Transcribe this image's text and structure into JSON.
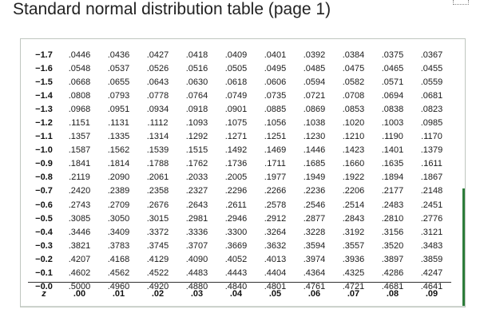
{
  "title": "Standard normal distribution table (page 1)",
  "table": {
    "header_z_label": "z",
    "column_headers": [
      ".00",
      ".01",
      ".02",
      ".03",
      ".04",
      ".05",
      ".06",
      ".07",
      ".08",
      ".09"
    ],
    "rows": [
      {
        "z": "−1.7",
        "values": [
          ".0446",
          ".0436",
          ".0427",
          ".0418",
          ".0409",
          ".0401",
          ".0392",
          ".0384",
          ".0375",
          ".0367"
        ]
      },
      {
        "z": "−1.6",
        "values": [
          ".0548",
          ".0537",
          ".0526",
          ".0516",
          ".0505",
          ".0495",
          ".0485",
          ".0475",
          ".0465",
          ".0455"
        ]
      },
      {
        "z": "−1.5",
        "values": [
          ".0668",
          ".0655",
          ".0643",
          ".0630",
          ".0618",
          ".0606",
          ".0594",
          ".0582",
          ".0571",
          ".0559"
        ]
      },
      {
        "z": "−1.4",
        "values": [
          ".0808",
          ".0793",
          ".0778",
          ".0764",
          ".0749",
          ".0735",
          ".0721",
          ".0708",
          ".0694",
          ".0681"
        ]
      },
      {
        "z": "−1.3",
        "values": [
          ".0968",
          ".0951",
          ".0934",
          ".0918",
          ".0901",
          ".0885",
          ".0869",
          ".0853",
          ".0838",
          ".0823"
        ]
      },
      {
        "z": "−1.2",
        "values": [
          ".1151",
          ".1131",
          ".1112",
          ".1093",
          ".1075",
          ".1056",
          ".1038",
          ".1020",
          ".1003",
          ".0985"
        ]
      },
      {
        "z": "−1.1",
        "values": [
          ".1357",
          ".1335",
          ".1314",
          ".1292",
          ".1271",
          ".1251",
          ".1230",
          ".1210",
          ".1190",
          ".1170"
        ]
      },
      {
        "z": "−1.0",
        "values": [
          ".1587",
          ".1562",
          ".1539",
          ".1515",
          ".1492",
          ".1469",
          ".1446",
          ".1423",
          ".1401",
          ".1379"
        ]
      },
      {
        "z": "−0.9",
        "values": [
          ".1841",
          ".1814",
          ".1788",
          ".1762",
          ".1736",
          ".1711",
          ".1685",
          ".1660",
          ".1635",
          ".1611"
        ]
      },
      {
        "z": "−0.8",
        "values": [
          ".2119",
          ".2090",
          ".2061",
          ".2033",
          ".2005",
          ".1977",
          ".1949",
          ".1922",
          ".1894",
          ".1867"
        ]
      },
      {
        "z": "−0.7",
        "values": [
          ".2420",
          ".2389",
          ".2358",
          ".2327",
          ".2296",
          ".2266",
          ".2236",
          ".2206",
          ".2177",
          ".2148"
        ]
      },
      {
        "z": "−0.6",
        "values": [
          ".2743",
          ".2709",
          ".2676",
          ".2643",
          ".2611",
          ".2578",
          ".2546",
          ".2514",
          ".2483",
          ".2451"
        ]
      },
      {
        "z": "−0.5",
        "values": [
          ".3085",
          ".3050",
          ".3015",
          ".2981",
          ".2946",
          ".2912",
          ".2877",
          ".2843",
          ".2810",
          ".2776"
        ]
      },
      {
        "z": "−0.4",
        "values": [
          ".3446",
          ".3409",
          ".3372",
          ".3336",
          ".3300",
          ".3264",
          ".3228",
          ".3192",
          ".3156",
          ".3121"
        ]
      },
      {
        "z": "−0.3",
        "values": [
          ".3821",
          ".3783",
          ".3745",
          ".3707",
          ".3669",
          ".3632",
          ".3594",
          ".3557",
          ".3520",
          ".3483"
        ]
      },
      {
        "z": "−0.2",
        "values": [
          ".4207",
          ".4168",
          ".4129",
          ".4090",
          ".4052",
          ".4013",
          ".3974",
          ".3936",
          ".3897",
          ".3859"
        ]
      },
      {
        "z": "−0.1",
        "values": [
          ".4602",
          ".4562",
          ".4522",
          ".4483",
          ".4443",
          ".4404",
          ".4364",
          ".4325",
          ".4286",
          ".4247"
        ]
      },
      {
        "z": "−0.0",
        "values": [
          ".5000",
          ".4960",
          ".4920",
          ".4880",
          ".4840",
          ".4801",
          ".4761",
          ".4721",
          ".4681",
          ".4641"
        ]
      }
    ]
  },
  "colors": {
    "accent_scrollbar": "#2d7d3a",
    "frame_border": "#bfc6bf"
  }
}
